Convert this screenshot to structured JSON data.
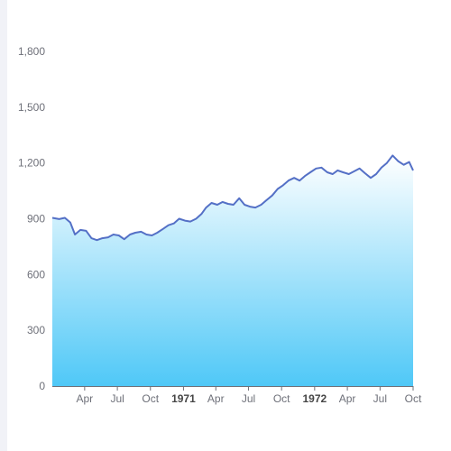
{
  "chart_data": {
    "type": "area",
    "title": "",
    "xlabel": "",
    "ylabel": "",
    "ylim": [
      0,
      1800
    ],
    "y_ticks": [
      "0",
      "300",
      "600",
      "900",
      "1,200",
      "1,500",
      "1,800"
    ],
    "y_tick_values": [
      0,
      300,
      600,
      900,
      1200,
      1500,
      1800
    ],
    "x_ticks": [
      {
        "label": "Apr",
        "date": "1970-04-01",
        "bold": false
      },
      {
        "label": "Jul",
        "date": "1970-07-01",
        "bold": false
      },
      {
        "label": "Oct",
        "date": "1970-10-01",
        "bold": false
      },
      {
        "label": "1971",
        "date": "1971-01-01",
        "bold": true
      },
      {
        "label": "Apr",
        "date": "1971-04-01",
        "bold": false
      },
      {
        "label": "Jul",
        "date": "1971-07-01",
        "bold": false
      },
      {
        "label": "Oct",
        "date": "1971-10-01",
        "bold": false
      },
      {
        "label": "1972",
        "date": "1972-01-01",
        "bold": true
      },
      {
        "label": "Apr",
        "date": "1972-04-01",
        "bold": false
      },
      {
        "label": "Jul",
        "date": "1972-07-01",
        "bold": false
      },
      {
        "label": "Oct",
        "date": "1972-10-01",
        "bold": false
      }
    ],
    "x_range": [
      "1970-01-01",
      "1972-10-01"
    ],
    "grid": false,
    "colors": {
      "line": "#5470c6",
      "area_top": "#ffffff",
      "area_bottom": "#4fc8f7",
      "axis": "#6e7079"
    },
    "series": [
      {
        "points": [
          [
            "1970-01-01",
            905
          ],
          [
            "1970-01-20",
            898
          ],
          [
            "1970-02-05",
            905
          ],
          [
            "1970-02-20",
            880
          ],
          [
            "1970-03-05",
            815
          ],
          [
            "1970-03-20",
            840
          ],
          [
            "1970-04-05",
            835
          ],
          [
            "1970-04-20",
            795
          ],
          [
            "1970-05-05",
            785
          ],
          [
            "1970-05-20",
            795
          ],
          [
            "1970-06-05",
            800
          ],
          [
            "1970-06-20",
            815
          ],
          [
            "1970-07-05",
            810
          ],
          [
            "1970-07-20",
            790
          ],
          [
            "1970-08-05",
            815
          ],
          [
            "1970-08-20",
            825
          ],
          [
            "1970-09-05",
            830
          ],
          [
            "1970-09-20",
            815
          ],
          [
            "1970-10-05",
            810
          ],
          [
            "1970-10-20",
            825
          ],
          [
            "1970-11-05",
            845
          ],
          [
            "1970-11-20",
            865
          ],
          [
            "1970-12-05",
            875
          ],
          [
            "1970-12-20",
            900
          ],
          [
            "1971-01-05",
            890
          ],
          [
            "1971-01-20",
            885
          ],
          [
            "1971-02-05",
            900
          ],
          [
            "1971-02-20",
            925
          ],
          [
            "1971-03-05",
            960
          ],
          [
            "1971-03-20",
            985
          ],
          [
            "1971-04-05",
            975
          ],
          [
            "1971-04-20",
            990
          ],
          [
            "1971-05-05",
            980
          ],
          [
            "1971-05-20",
            975
          ],
          [
            "1971-06-05",
            1010
          ],
          [
            "1971-06-20",
            975
          ],
          [
            "1971-07-05",
            965
          ],
          [
            "1971-07-20",
            960
          ],
          [
            "1971-08-05",
            975
          ],
          [
            "1971-08-20",
            1000
          ],
          [
            "1971-09-05",
            1025
          ],
          [
            "1971-09-20",
            1060
          ],
          [
            "1971-10-05",
            1080
          ],
          [
            "1971-10-20",
            1105
          ],
          [
            "1971-11-05",
            1120
          ],
          [
            "1971-11-20",
            1105
          ],
          [
            "1971-12-05",
            1130
          ],
          [
            "1971-12-20",
            1150
          ],
          [
            "1972-01-05",
            1170
          ],
          [
            "1972-01-20",
            1175
          ],
          [
            "1972-02-05",
            1150
          ],
          [
            "1972-02-20",
            1140
          ],
          [
            "1972-03-05",
            1160
          ],
          [
            "1972-03-20",
            1150
          ],
          [
            "1972-04-05",
            1140
          ],
          [
            "1972-04-20",
            1155
          ],
          [
            "1972-05-05",
            1170
          ],
          [
            "1972-05-20",
            1145
          ],
          [
            "1972-06-05",
            1120
          ],
          [
            "1972-06-20",
            1140
          ],
          [
            "1972-07-05",
            1175
          ],
          [
            "1972-07-20",
            1200
          ],
          [
            "1972-08-05",
            1240
          ],
          [
            "1972-08-20",
            1210
          ],
          [
            "1972-09-05",
            1190
          ],
          [
            "1972-09-20",
            1205
          ],
          [
            "1972-10-01",
            1160
          ]
        ]
      }
    ]
  }
}
